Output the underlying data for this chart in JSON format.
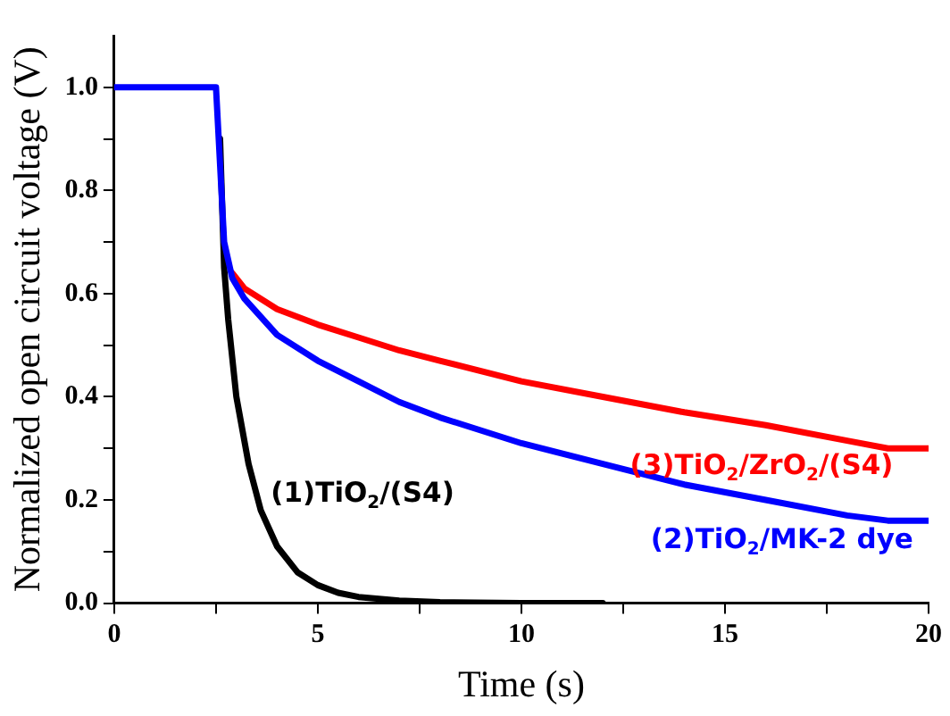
{
  "chart_data": {
    "type": "line",
    "xlabel": "Time (s)",
    "ylabel": "Normalized open circuit voltage (V)",
    "xlim": [
      0,
      20
    ],
    "xticks": [
      0,
      {
        "value": 2.5,
        "label": null
      },
      5,
      {
        "value": 7.5,
        "label": null
      },
      10,
      {
        "value": 12.5,
        "label": null
      },
      15,
      {
        "value": 17.5,
        "label": null
      },
      20
    ],
    "ylim": [
      0,
      1.1
    ],
    "yticks": [
      "0.0",
      {
        "value": 0.1,
        "label": null
      },
      {
        "value": 0.2,
        "label": "0.2"
      },
      {
        "value": 0.3,
        "label": null
      },
      {
        "value": 0.4,
        "label": "0.4"
      },
      {
        "value": 0.5,
        "label": null
      },
      {
        "value": 0.6,
        "label": "0.6"
      },
      {
        "value": 0.7,
        "label": null
      },
      {
        "value": 0.8,
        "label": "0.8"
      },
      {
        "value": 0.9,
        "label": null
      },
      {
        "value": 1.0,
        "label": "1.0"
      }
    ],
    "grid": false,
    "legend": false,
    "marker": "none",
    "line_style": "solid",
    "series": [
      {
        "name": "(1)TiO$_{2}$/(S4)",
        "color": "#000000",
        "x": [
          2.6,
          2.7,
          2.8,
          3.0,
          3.3,
          3.6,
          4,
          4.5,
          5,
          5.5,
          6,
          7,
          8,
          10,
          12
        ],
        "values": [
          0.9,
          0.65,
          0.55,
          0.4,
          0.27,
          0.18,
          0.11,
          0.06,
          0.035,
          0.02,
          0.012,
          0.005,
          0.002,
          0.0,
          0.0
        ]
      },
      {
        "name": "(3)TiO$_{2}$/ZrO$_{2}$/(S4)",
        "color": "#ff0000",
        "x": [
          2.9,
          3.2,
          4,
          5,
          6,
          7,
          8,
          10,
          12,
          14,
          16,
          18,
          19,
          20
        ],
        "values": [
          0.64,
          0.61,
          0.57,
          0.54,
          0.515,
          0.49,
          0.47,
          0.43,
          0.4,
          0.37,
          0.345,
          0.315,
          0.3,
          0.3
        ]
      },
      {
        "name": "(2)TiO$_{2}$/MK-2 dye",
        "color": "#0000ff",
        "x": [
          0,
          2.5,
          2.6,
          2.7,
          2.9,
          3.2,
          4,
          5,
          6,
          7,
          8,
          10,
          12,
          14,
          16,
          18,
          19,
          20
        ],
        "values": [
          1.0,
          1.0,
          0.85,
          0.7,
          0.63,
          0.59,
          0.52,
          0.47,
          0.43,
          0.39,
          0.36,
          0.31,
          0.27,
          0.23,
          0.2,
          0.17,
          0.16,
          0.16
        ]
      }
    ]
  }
}
